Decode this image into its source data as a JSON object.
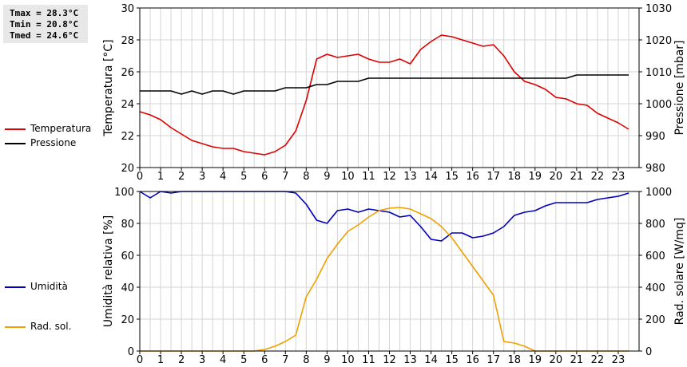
{
  "stats": {
    "tmax": "Tmax = 28.3°C",
    "tmin": "Tmin = 20.8°C",
    "tmed": "Tmed = 24.6°C"
  },
  "legend_top": [
    {
      "label": "Temperatura",
      "color": "#dd0000"
    },
    {
      "label": "Pressione",
      "color": "#000000"
    }
  ],
  "legend_bottom": [
    {
      "label": "Umidità",
      "color": "#0000bb"
    },
    {
      "label": "Rad. sol.",
      "color": "#f0a000"
    }
  ],
  "chart_data": [
    {
      "type": "line",
      "x_ticks": [
        "0",
        "1",
        "2",
        "3",
        "4",
        "5",
        "6",
        "7",
        "8",
        "9",
        "10",
        "11",
        "12",
        "13",
        "14",
        "15",
        "16",
        "17",
        "18",
        "19",
        "20",
        "21",
        "22",
        "23"
      ],
      "xlim": [
        0,
        24
      ],
      "grid": true,
      "left_axis": {
        "label": "Temperatura [°C]",
        "ylim": [
          20,
          30
        ],
        "ticks": [
          "20",
          "22",
          "24",
          "26",
          "28",
          "30"
        ]
      },
      "right_axis": {
        "label": "Pressione [mbar]",
        "ylim": [
          980,
          1030
        ],
        "ticks": [
          "980",
          "990",
          "1000",
          "1010",
          "1020",
          "1030"
        ]
      },
      "series": [
        {
          "name": "Temperatura",
          "axis": "left",
          "color": "#dd0000",
          "points": [
            [
              0,
              23.5
            ],
            [
              0.5,
              23.3
            ],
            [
              1,
              23.0
            ],
            [
              1.5,
              22.5
            ],
            [
              2,
              22.1
            ],
            [
              2.5,
              21.7
            ],
            [
              3,
              21.5
            ],
            [
              3.5,
              21.3
            ],
            [
              4,
              21.2
            ],
            [
              4.5,
              21.2
            ],
            [
              5,
              21.0
            ],
            [
              5.5,
              20.9
            ],
            [
              6,
              20.8
            ],
            [
              6.5,
              21.0
            ],
            [
              7,
              21.4
            ],
            [
              7.5,
              22.3
            ],
            [
              8,
              24.2
            ],
            [
              8.5,
              26.8
            ],
            [
              9,
              27.1
            ],
            [
              9.5,
              26.9
            ],
            [
              10,
              27.0
            ],
            [
              10.5,
              27.1
            ],
            [
              11,
              26.8
            ],
            [
              11.5,
              26.6
            ],
            [
              12,
              26.6
            ],
            [
              12.5,
              26.8
            ],
            [
              13,
              26.5
            ],
            [
              13.5,
              27.4
            ],
            [
              14,
              27.9
            ],
            [
              14.5,
              28.3
            ],
            [
              15,
              28.2
            ],
            [
              15.5,
              28.0
            ],
            [
              16,
              27.8
            ],
            [
              16.5,
              27.6
            ],
            [
              17,
              27.7
            ],
            [
              17.5,
              27.0
            ],
            [
              18,
              26.0
            ],
            [
              18.5,
              25.4
            ],
            [
              19,
              25.2
            ],
            [
              19.5,
              24.9
            ],
            [
              20,
              24.4
            ],
            [
              20.5,
              24.3
            ],
            [
              21,
              24.0
            ],
            [
              21.5,
              23.9
            ],
            [
              22,
              23.4
            ],
            [
              22.5,
              23.1
            ],
            [
              23,
              22.8
            ],
            [
              23.5,
              22.4
            ]
          ]
        },
        {
          "name": "Pressione",
          "axis": "right",
          "color": "#000000",
          "points": [
            [
              0,
              1004
            ],
            [
              0.5,
              1004
            ],
            [
              1,
              1004
            ],
            [
              1.5,
              1004
            ],
            [
              2,
              1003
            ],
            [
              2.5,
              1004
            ],
            [
              3,
              1003
            ],
            [
              3.5,
              1004
            ],
            [
              4,
              1004
            ],
            [
              4.5,
              1003
            ],
            [
              5,
              1004
            ],
            [
              5.5,
              1004
            ],
            [
              6,
              1004
            ],
            [
              6.5,
              1004
            ],
            [
              7,
              1005
            ],
            [
              7.5,
              1005
            ],
            [
              8,
              1005
            ],
            [
              8.5,
              1006
            ],
            [
              9,
              1006
            ],
            [
              9.5,
              1007
            ],
            [
              10,
              1007
            ],
            [
              10.5,
              1007
            ],
            [
              11,
              1008
            ],
            [
              11.5,
              1008
            ],
            [
              12,
              1008
            ],
            [
              12.5,
              1008
            ],
            [
              13,
              1008
            ],
            [
              13.5,
              1008
            ],
            [
              14,
              1008
            ],
            [
              14.5,
              1008
            ],
            [
              15,
              1008
            ],
            [
              15.5,
              1008
            ],
            [
              16,
              1008
            ],
            [
              16.5,
              1008
            ],
            [
              17,
              1008
            ],
            [
              17.5,
              1008
            ],
            [
              18,
              1008
            ],
            [
              18.5,
              1008
            ],
            [
              19,
              1008
            ],
            [
              19.5,
              1008
            ],
            [
              20,
              1008
            ],
            [
              20.5,
              1008
            ],
            [
              21,
              1009
            ],
            [
              21.5,
              1009
            ],
            [
              22,
              1009
            ],
            [
              22.5,
              1009
            ],
            [
              23,
              1009
            ],
            [
              23.5,
              1009
            ]
          ]
        }
      ]
    },
    {
      "type": "line",
      "x_ticks": [
        "0",
        "1",
        "2",
        "3",
        "4",
        "5",
        "6",
        "7",
        "8",
        "9",
        "10",
        "11",
        "12",
        "13",
        "14",
        "15",
        "16",
        "17",
        "18",
        "19",
        "20",
        "21",
        "22",
        "23"
      ],
      "xlim": [
        0,
        24
      ],
      "grid": true,
      "left_axis": {
        "label": "Umidità relativa [%]",
        "ylim": [
          0,
          100
        ],
        "ticks": [
          "0",
          "20",
          "40",
          "60",
          "80",
          "100"
        ]
      },
      "right_axis": {
        "label": "Rad. solare [W/mq]",
        "ylim": [
          0,
          1000
        ],
        "ticks": [
          "0",
          "200",
          "400",
          "600",
          "800",
          "1000"
        ]
      },
      "series": [
        {
          "name": "Umidità",
          "axis": "left",
          "color": "#0000bb",
          "points": [
            [
              0,
              100
            ],
            [
              0.5,
              96
            ],
            [
              1,
              100
            ],
            [
              1.5,
              99
            ],
            [
              2,
              100
            ],
            [
              2.5,
              100
            ],
            [
              3,
              100
            ],
            [
              3.5,
              100
            ],
            [
              4,
              100
            ],
            [
              4.5,
              100
            ],
            [
              5,
              100
            ],
            [
              5.5,
              100
            ],
            [
              6,
              100
            ],
            [
              6.5,
              100
            ],
            [
              7,
              100
            ],
            [
              7.5,
              99
            ],
            [
              8,
              92
            ],
            [
              8.5,
              82
            ],
            [
              9,
              80
            ],
            [
              9.5,
              88
            ],
            [
              10,
              89
            ],
            [
              10.5,
              87
            ],
            [
              11,
              89
            ],
            [
              11.5,
              88
            ],
            [
              12,
              87
            ],
            [
              12.5,
              84
            ],
            [
              13,
              85
            ],
            [
              13.5,
              78
            ],
            [
              14,
              70
            ],
            [
              14.5,
              69
            ],
            [
              15,
              74
            ],
            [
              15.5,
              74
            ],
            [
              16,
              71
            ],
            [
              16.5,
              72
            ],
            [
              17,
              74
            ],
            [
              17.5,
              78
            ],
            [
              18,
              85
            ],
            [
              18.5,
              87
            ],
            [
              19,
              88
            ],
            [
              19.5,
              91
            ],
            [
              20,
              93
            ],
            [
              20.5,
              93
            ],
            [
              21,
              93
            ],
            [
              21.5,
              93
            ],
            [
              22,
              95
            ],
            [
              22.5,
              96
            ],
            [
              23,
              97
            ],
            [
              23.5,
              99
            ]
          ]
        },
        {
          "name": "Rad. sol.",
          "axis": "right",
          "color": "#f0a000",
          "points": [
            [
              0,
              0
            ],
            [
              0.5,
              0
            ],
            [
              1,
              0
            ],
            [
              1.5,
              0
            ],
            [
              2,
              0
            ],
            [
              2.5,
              0
            ],
            [
              3,
              0
            ],
            [
              3.5,
              0
            ],
            [
              4,
              0
            ],
            [
              4.5,
              0
            ],
            [
              5,
              0
            ],
            [
              5.5,
              0
            ],
            [
              6,
              10
            ],
            [
              6.5,
              30
            ],
            [
              7,
              60
            ],
            [
              7.5,
              100
            ],
            [
              8,
              340
            ],
            [
              8.5,
              450
            ],
            [
              9,
              580
            ],
            [
              9.5,
              670
            ],
            [
              10,
              750
            ],
            [
              10.5,
              790
            ],
            [
              11,
              840
            ],
            [
              11.5,
              880
            ],
            [
              12,
              895
            ],
            [
              12.5,
              900
            ],
            [
              13,
              890
            ],
            [
              13.5,
              860
            ],
            [
              14,
              830
            ],
            [
              14.5,
              780
            ],
            [
              15,
              710
            ],
            [
              15.5,
              620
            ],
            [
              16,
              530
            ],
            [
              16.5,
              440
            ],
            [
              17,
              350
            ],
            [
              17.5,
              60
            ],
            [
              18,
              50
            ],
            [
              18.5,
              30
            ],
            [
              19,
              0
            ],
            [
              19.5,
              0
            ],
            [
              20,
              0
            ],
            [
              20.5,
              0
            ],
            [
              21,
              0
            ],
            [
              21.5,
              0
            ],
            [
              22,
              0
            ],
            [
              22.5,
              0
            ],
            [
              23,
              0
            ],
            [
              23.5,
              0
            ]
          ]
        }
      ]
    }
  ]
}
